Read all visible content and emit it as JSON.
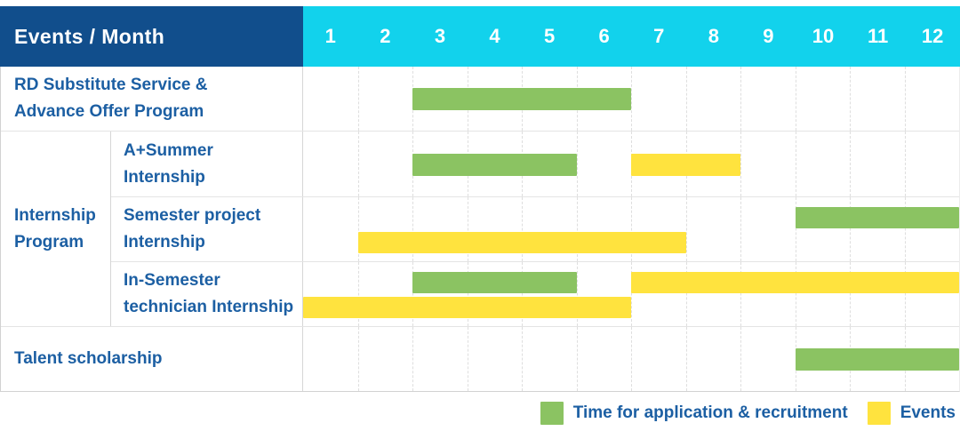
{
  "header": {
    "title": "Events / Month",
    "months": [
      "1",
      "2",
      "3",
      "4",
      "5",
      "6",
      "7",
      "8",
      "9",
      "10",
      "11",
      "12"
    ]
  },
  "colors": {
    "header_bg": "#114E8C",
    "months_bg": "#12D2EC",
    "label_text": "#1C5FA3",
    "green": "#8BC362",
    "yellow": "#FFE33E"
  },
  "gantt": {
    "rows": [
      {
        "kind": "simple",
        "label": "RD Substitute Service & Advance Offer Program",
        "lines": [
          "RD Substitute Service &",
          "Advance Offer Program"
        ],
        "lanes": [
          [
            {
              "color": "green",
              "start_month": 3,
              "end_month": 6
            }
          ]
        ]
      },
      {
        "kind": "group",
        "label": "Internship Program",
        "lines": [
          "Internship",
          "Program"
        ],
        "children": [
          {
            "label": "A+Summer Internship",
            "lines": [
              "A+Summer",
              "Internship"
            ],
            "lanes": [
              [
                {
                  "color": "green",
                  "start_month": 3,
                  "end_month": 5
                },
                {
                  "color": "yellow",
                  "start_month": 7,
                  "end_month": 8
                }
              ]
            ]
          },
          {
            "label": "Semester project Internship",
            "lines": [
              "Semester project",
              "Internship"
            ],
            "lanes": [
              [
                {
                  "color": "green",
                  "start_month": 10,
                  "end_month": 12
                }
              ],
              [
                {
                  "color": "yellow",
                  "start_month": 2,
                  "end_month": 7
                }
              ]
            ]
          },
          {
            "label": "In-Semester technician Internship",
            "lines": [
              "In-Semester",
              "technician Internship"
            ],
            "lanes": [
              [
                {
                  "color": "green",
                  "start_month": 3,
                  "end_month": 5
                },
                {
                  "color": "yellow",
                  "start_month": 7,
                  "end_month": 12
                }
              ],
              [
                {
                  "color": "yellow",
                  "start_month": 1,
                  "end_month": 6
                }
              ]
            ]
          }
        ]
      },
      {
        "kind": "simple",
        "label": "Talent scholarship",
        "lines": [
          "Talent scholarship"
        ],
        "lanes": [
          [
            {
              "color": "green",
              "start_month": 10,
              "end_month": 12
            }
          ]
        ]
      }
    ]
  },
  "legend": {
    "items": [
      {
        "color": "green",
        "label": "Time for application & recruitment"
      },
      {
        "color": "yellow",
        "label": "Events"
      }
    ]
  },
  "chart_data": {
    "type": "table",
    "subtype": "gantt",
    "title": "Events / Month",
    "x_axis": {
      "label": "Month",
      "ticks": [
        1,
        2,
        3,
        4,
        5,
        6,
        7,
        8,
        9,
        10,
        11,
        12
      ],
      "range": [
        1,
        12
      ]
    },
    "grid": true,
    "legend_position": "bottom-right",
    "series_legend": [
      {
        "name": "Time for application & recruitment",
        "color": "#8BC362"
      },
      {
        "name": "Events",
        "color": "#FFE33E"
      }
    ],
    "rows": [
      {
        "event": "RD Substitute Service & Advance Offer Program",
        "group": null,
        "bars": [
          {
            "series": "Time for application & recruitment",
            "start_month": 3,
            "end_month": 6
          }
        ]
      },
      {
        "event": "A+Summer Internship",
        "group": "Internship Program",
        "bars": [
          {
            "series": "Time for application & recruitment",
            "start_month": 3,
            "end_month": 5
          },
          {
            "series": "Events",
            "start_month": 7,
            "end_month": 8
          }
        ]
      },
      {
        "event": "Semester project Internship",
        "group": "Internship Program",
        "bars": [
          {
            "series": "Time for application & recruitment",
            "start_month": 10,
            "end_month": 12
          },
          {
            "series": "Events",
            "start_month": 2,
            "end_month": 7
          }
        ]
      },
      {
        "event": "In-Semester technician Internship",
        "group": "Internship Program",
        "bars": [
          {
            "series": "Time for application & recruitment",
            "start_month": 3,
            "end_month": 5
          },
          {
            "series": "Events",
            "start_month": 7,
            "end_month": 12
          },
          {
            "series": "Events",
            "start_month": 1,
            "end_month": 6
          }
        ]
      },
      {
        "event": "Talent scholarship",
        "group": null,
        "bars": [
          {
            "series": "Time for application & recruitment",
            "start_month": 10,
            "end_month": 12
          }
        ]
      }
    ]
  }
}
